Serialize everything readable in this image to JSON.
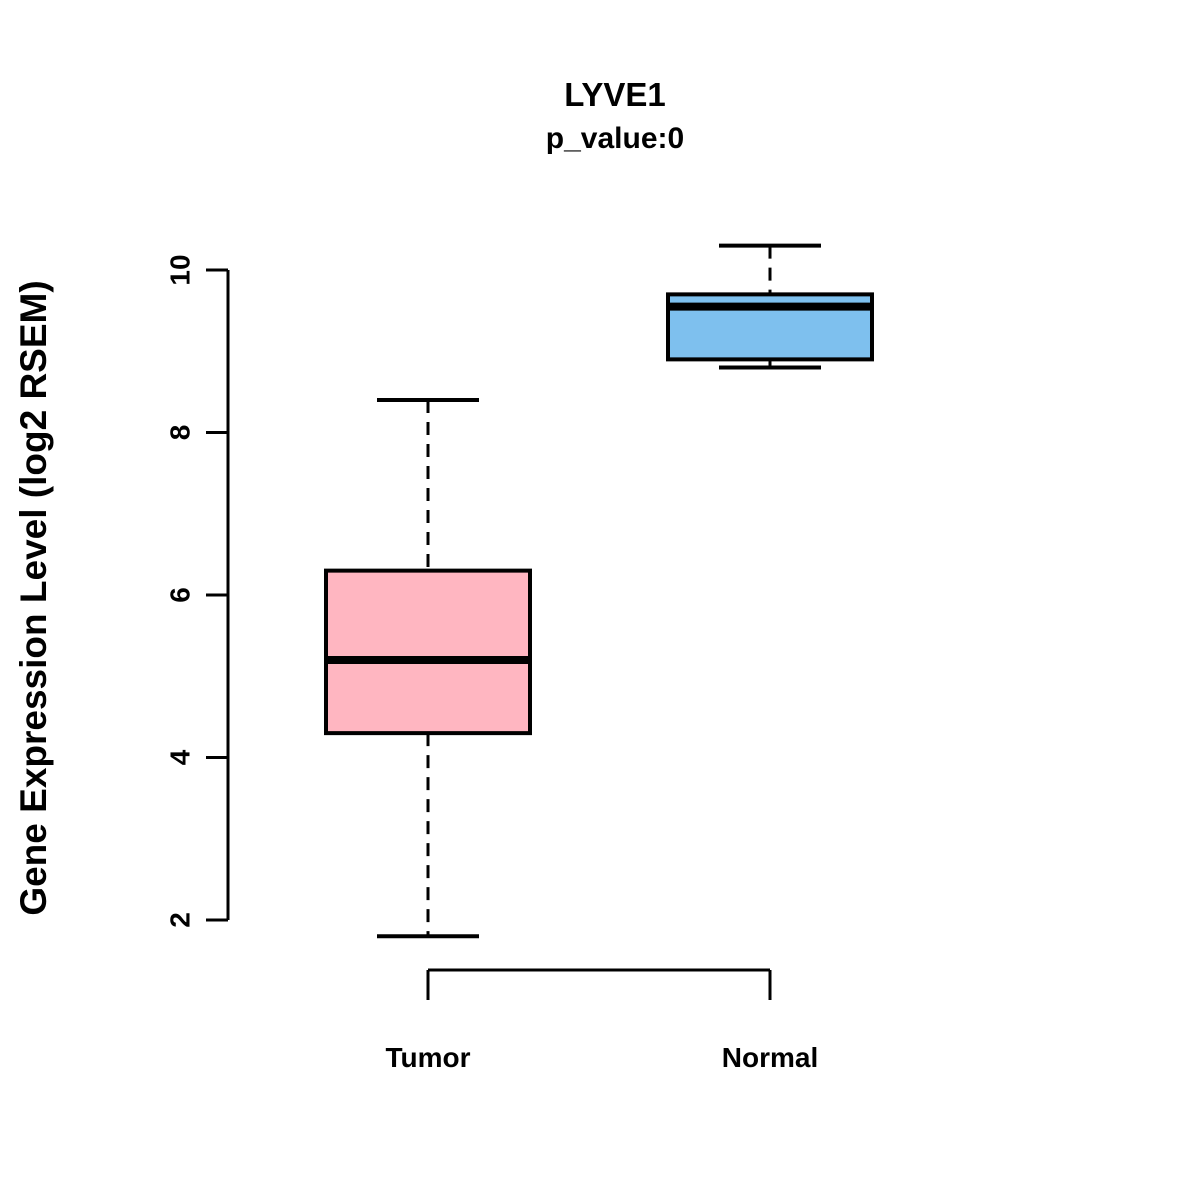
{
  "chart_data": {
    "type": "boxplot",
    "title": "LYVE1",
    "subtitle": "p_value:0",
    "ylabel": "Gene Expression Level (log2 RSEM)",
    "xlabel": "",
    "categories": [
      "Tumor",
      "Normal"
    ],
    "yticks": [
      2,
      4,
      6,
      8,
      10
    ],
    "ylim": [
      1.5,
      10.5
    ],
    "grid": false,
    "boxes": [
      {
        "category": "Tumor",
        "whisker_low": 1.8,
        "q1": 4.3,
        "median": 5.2,
        "q3": 6.3,
        "whisker_high": 8.4,
        "color": "#FFB6C1"
      },
      {
        "category": "Normal",
        "whisker_low": 8.8,
        "q1": 8.9,
        "median": 9.55,
        "q3": 9.7,
        "whisker_high": 10.3,
        "color": "#7EC0EE"
      }
    ],
    "colors": {
      "tumor_fill": "#FFB6C1",
      "normal_fill": "#7EC0EE",
      "box_border": "#000000",
      "median_line": "#000000",
      "text": "#000000",
      "background": "#FFFFFF"
    }
  }
}
